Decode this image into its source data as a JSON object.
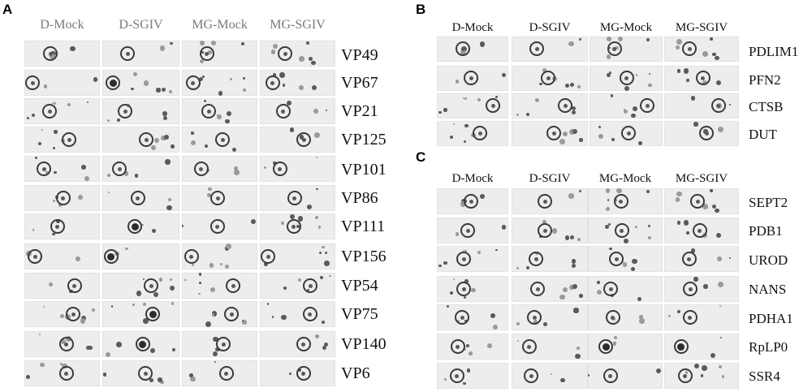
{
  "panels": {
    "A": {
      "letter": "A",
      "columns": [
        "D-Mock",
        "D-SGIV",
        "MG-Mock",
        "MG-SGIV"
      ],
      "rows": [
        "VP49",
        "VP67",
        "VP21",
        "VP125",
        "VP101",
        "VP86",
        "VP111",
        "VP156",
        "VP54",
        "VP75",
        "VP140",
        "VP6"
      ]
    },
    "B": {
      "letter": "B",
      "columns": [
        "D-Mock",
        "D-SGIV",
        "MG-Mock",
        "MG-SGIV"
      ],
      "rows": [
        "PDLIM1",
        "PFN2",
        "CTSB",
        "DUT"
      ]
    },
    "C": {
      "letter": "C",
      "columns": [
        "D-Mock",
        "D-SGIV",
        "MG-Mock",
        "MG-SGIV"
      ],
      "rows": [
        "SEPT2",
        "PDB1",
        "UROD",
        "NANS",
        "PDHA1",
        "RpLP0",
        "SSR4"
      ]
    }
  }
}
